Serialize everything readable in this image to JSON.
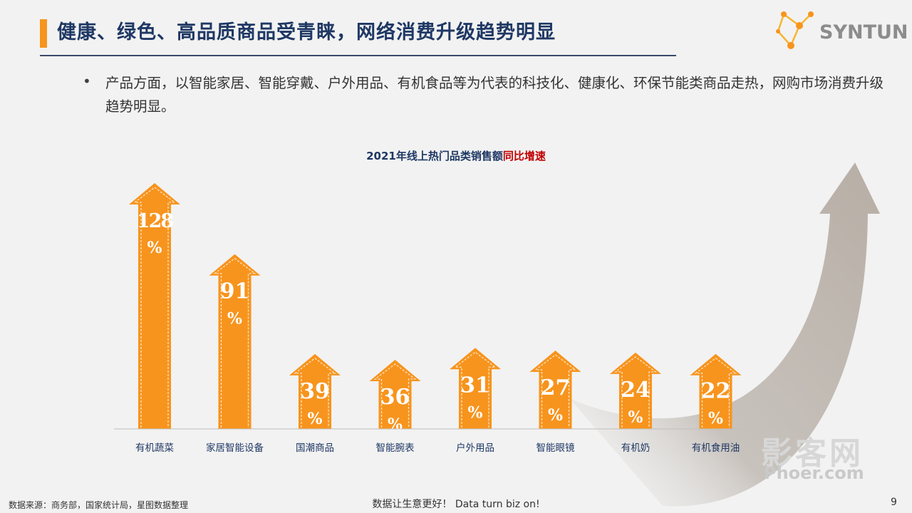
{
  "header": {
    "title": "健康、绿色、高品质商品受青睐，网络消费升级趋势明显",
    "logo_text": "SYNTUN",
    "logo_icon": "molecule-icon"
  },
  "bullet": {
    "marker": "•",
    "text": "产品方面，以智能家居、智能穿戴、户外用品、有机食品等为代表的科技化、健康化、环保节能类商品走热，网购市场消费升级趋势明显。"
  },
  "chart_title": {
    "main": "2021年线上热门品类销售额",
    "highlight": "同比增速"
  },
  "chart_data": {
    "type": "bar",
    "title": "2021年线上热门品类销售额同比增速",
    "categories": [
      "有机蔬菜",
      "家居智能设备",
      "国潮商品",
      "智能腕表",
      "户外用品",
      "智能眼镜",
      "有机奶",
      "有机食用油"
    ],
    "values": [
      128,
      91,
      39,
      36,
      31,
      27,
      24,
      22
    ],
    "unit": "%",
    "bar_style": "upward-arrow",
    "colors": {
      "bar": "#f7941d",
      "bar_dash": "#fde3c2",
      "label": "#ffffff",
      "accent": "#c00000"
    }
  },
  "footer": {
    "source": "数据来源：商务部，国家统计局，星图数据整理",
    "slogan": "数据让生意更好！ Data turn biz on!",
    "page": "9"
  },
  "watermark": {
    "line1": "影客网",
    "line2": "Phoer.com"
  }
}
